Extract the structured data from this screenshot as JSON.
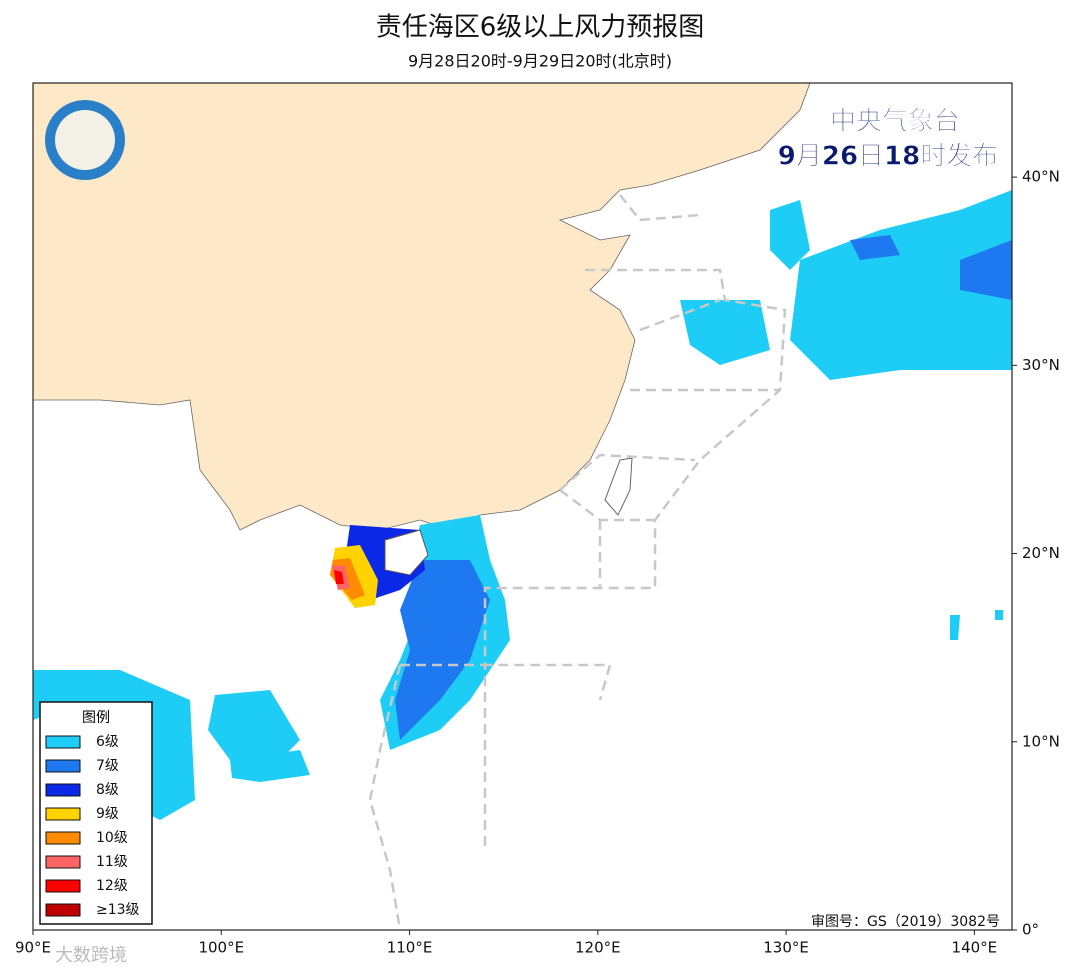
{
  "header": {
    "title": "责任海区6级以上风力预报图",
    "subtitle": "9月28日20时-9月29日20时(北京时)"
  },
  "issuer": {
    "agency": "中央气象台",
    "issued": "9月26日18时发布"
  },
  "legend": {
    "title": "图例",
    "items": [
      {
        "label": "6级",
        "color": "#1ecdf5"
      },
      {
        "label": "7级",
        "color": "#1e78f0"
      },
      {
        "label": "8级",
        "color": "#0a28e6"
      },
      {
        "label": "9级",
        "color": "#ffd200"
      },
      {
        "label": "10级",
        "color": "#ff8c00"
      },
      {
        "label": "11级",
        "color": "#ff6464"
      },
      {
        "label": "12级",
        "color": "#ff0000"
      },
      {
        "label": "≥13级",
        "color": "#c00000"
      }
    ]
  },
  "map": {
    "xlim": [
      90,
      142
    ],
    "ylim": [
      0,
      45
    ],
    "xticks": [
      {
        "value": 90,
        "label": "90°E"
      },
      {
        "value": 100,
        "label": "100°E"
      },
      {
        "value": 110,
        "label": "110°E"
      },
      {
        "value": 120,
        "label": "120°E"
      },
      {
        "value": 130,
        "label": "130°E"
      },
      {
        "value": 140,
        "label": "140°E"
      }
    ],
    "yticks": [
      {
        "value": 0,
        "label": "0°"
      },
      {
        "value": 10,
        "label": "10°N"
      },
      {
        "value": 20,
        "label": "20°N"
      },
      {
        "value": 30,
        "label": "30°N"
      },
      {
        "value": 40,
        "label": "40°N"
      }
    ]
  },
  "footer": {
    "approval": "审图号：GS（2019）3082号",
    "watermark": "大数跨境"
  }
}
